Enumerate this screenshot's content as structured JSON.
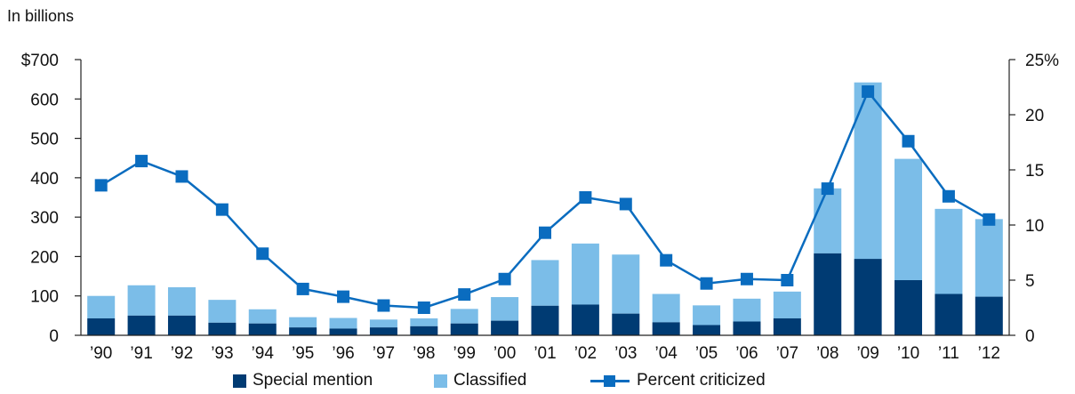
{
  "chart_data": {
    "type": "bar",
    "stacked": true,
    "unit_label": "In billions",
    "categories": [
      "’90",
      "’91",
      "’92",
      "’93",
      "’94",
      "’95",
      "’96",
      "’97",
      "’98",
      "’99",
      "’00",
      "’01",
      "’02",
      "’03",
      "’04",
      "’05",
      "’06",
      "’07",
      "’08",
      "’09",
      "’10",
      "’11",
      "’12"
    ],
    "series": [
      {
        "name": "Special mention",
        "type": "bar",
        "axis": "left",
        "color": "#003b73",
        "values": [
          43,
          50,
          50,
          32,
          30,
          20,
          17,
          20,
          23,
          30,
          37,
          75,
          78,
          55,
          33,
          26,
          35,
          43,
          208,
          194,
          140,
          105,
          98
        ]
      },
      {
        "name": "Classified",
        "type": "bar",
        "axis": "left",
        "color": "#7bbde8",
        "values": [
          57,
          77,
          72,
          58,
          36,
          26,
          27,
          20,
          20,
          37,
          60,
          116,
          155,
          150,
          72,
          50,
          58,
          68,
          165,
          448,
          308,
          216,
          197
        ]
      },
      {
        "name": "Percent criticized",
        "type": "line",
        "axis": "right",
        "color": "#0a6cbf",
        "values": [
          13.6,
          15.8,
          14.4,
          11.4,
          7.4,
          4.2,
          3.5,
          2.7,
          2.5,
          3.7,
          5.1,
          9.3,
          12.5,
          11.9,
          6.8,
          4.7,
          5.1,
          5.0,
          13.3,
          22.1,
          17.6,
          12.6,
          10.5
        ]
      }
    ],
    "left_axis": {
      "ylim": [
        0,
        700
      ],
      "ticks": [
        0,
        100,
        200,
        300,
        400,
        500,
        600,
        700
      ],
      "tick_labels": [
        "0",
        "100",
        "200",
        "300",
        "400",
        "500",
        "600",
        "$700"
      ]
    },
    "right_axis": {
      "ylim": [
        0,
        25
      ],
      "ticks": [
        0,
        5,
        10,
        15,
        20,
        25
      ],
      "tick_labels": [
        "0",
        "5",
        "10",
        "15",
        "20",
        "25%"
      ]
    },
    "grid": false,
    "legend": {
      "position": "bottom",
      "entries": [
        "Special mention",
        "Classified",
        "Percent criticized"
      ]
    }
  }
}
